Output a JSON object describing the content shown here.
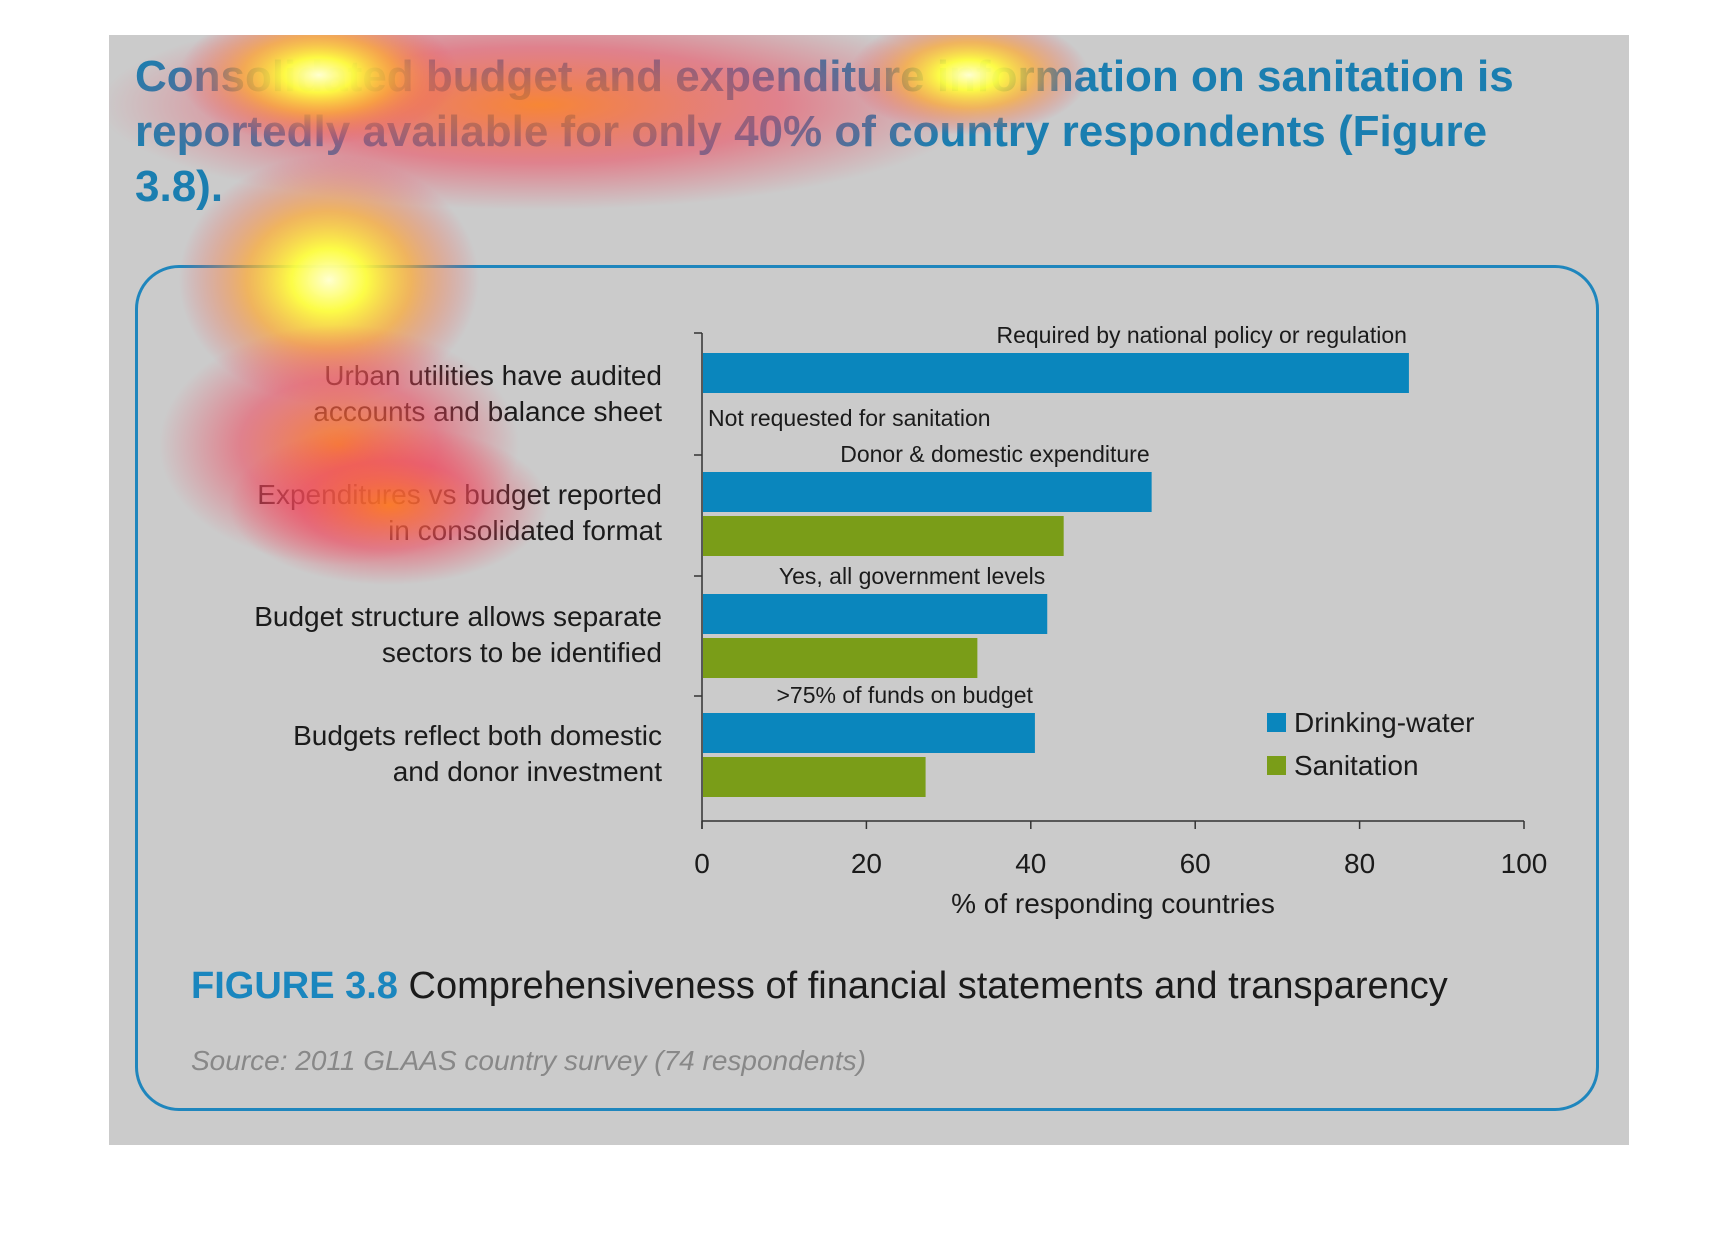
{
  "headline": "Consolidated budget and expenditure information on sanitation is reportedly available for only 40% of country respondents (Figure 3.8).",
  "figure": {
    "label": "FIGURE 3.8",
    "title": "Comprehensiveness of financial statements and transparency",
    "source": "Source: 2011 GLAAS country survey (74 respondents)"
  },
  "chart_data": {
    "type": "bar",
    "orientation": "horizontal",
    "categories": [
      [
        "Urban utilities have audited",
        "accounts and balance sheet"
      ],
      [
        "Expenditures vs budget reported",
        "in consolidated format"
      ],
      [
        "Budget structure allows separate",
        "sectors to be identified"
      ],
      [
        "Budgets reflect both domestic",
        "and donor investment"
      ]
    ],
    "series": [
      {
        "name": "Drinking-water",
        "color": "#0a86bd",
        "values": [
          86,
          54.7,
          42,
          40.5
        ]
      },
      {
        "name": "Sanitation",
        "color": "#7a9d18",
        "values": [
          null,
          44,
          33.5,
          27.2
        ]
      }
    ],
    "annotations": [
      "Required by national policy or regulation",
      "Donor & domestic expenditure",
      "Yes, all government levels",
      ">75% of funds on budget"
    ],
    "missing_note": "Not requested for sanitation",
    "xlabel": "% of responding countries",
    "xlim": [
      0,
      100
    ],
    "xticks": [
      0,
      20,
      40,
      60,
      80,
      100
    ],
    "legend_position": "bottom-right",
    "grid": false
  }
}
